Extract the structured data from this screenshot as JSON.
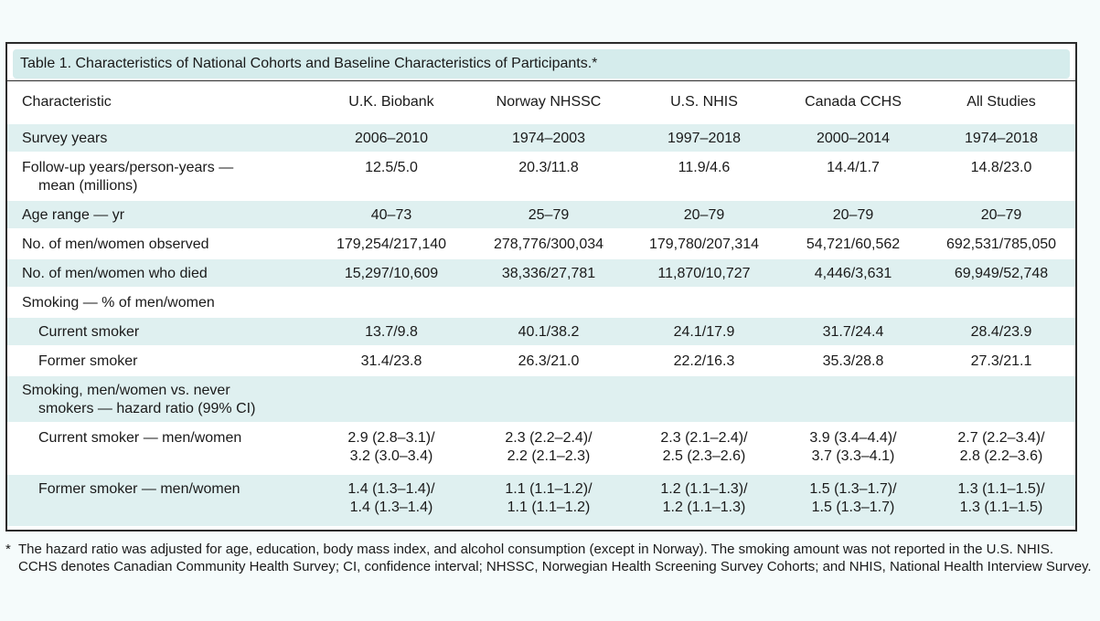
{
  "title": "Table 1. Characteristics of National Cohorts and Baseline Characteristics of Participants.*",
  "header": {
    "characteristic": "Characteristic",
    "columns": [
      "U.K. Biobank",
      "Norway NHSSC",
      "U.S. NHIS",
      "Canada CCHS",
      "All Studies"
    ]
  },
  "rows": [
    {
      "label": [
        "Survey years"
      ],
      "values": [
        [
          "2006–2010"
        ],
        [
          "1974–2003"
        ],
        [
          "1997–2018"
        ],
        [
          "2000–2014"
        ],
        [
          "1974–2018"
        ]
      ]
    },
    {
      "label": [
        "Follow-up years/person-years —",
        "mean (millions)"
      ],
      "values": [
        [
          "12.5/5.0"
        ],
        [
          "20.3/11.8"
        ],
        [
          "11.9/4.6"
        ],
        [
          "14.4/1.7"
        ],
        [
          "14.8/23.0"
        ]
      ]
    },
    {
      "label": [
        "Age range — yr"
      ],
      "values": [
        [
          "40–73"
        ],
        [
          "25–79"
        ],
        [
          "20–79"
        ],
        [
          "20–79"
        ],
        [
          "20–79"
        ]
      ]
    },
    {
      "label": [
        "No. of men/women observed"
      ],
      "values": [
        [
          "179,254/217,140"
        ],
        [
          "278,776/300,034"
        ],
        [
          "179,780/207,314"
        ],
        [
          "54,721/60,562"
        ],
        [
          "692,531/785,050"
        ]
      ]
    },
    {
      "label": [
        "No. of men/women who died"
      ],
      "values": [
        [
          "15,297/10,609"
        ],
        [
          "38,336/27,781"
        ],
        [
          "11,870/10,727"
        ],
        [
          "4,446/3,631"
        ],
        [
          "69,949/52,748"
        ]
      ]
    },
    {
      "label": [
        "Smoking — % of men/women"
      ],
      "values": [
        [
          ""
        ],
        [
          ""
        ],
        [
          ""
        ],
        [
          ""
        ],
        [
          ""
        ]
      ]
    },
    {
      "label": [
        "Current smoker"
      ],
      "values": [
        [
          "13.7/9.8"
        ],
        [
          "40.1/38.2"
        ],
        [
          "24.1/17.9"
        ],
        [
          "31.7/24.4"
        ],
        [
          "28.4/23.9"
        ]
      ]
    },
    {
      "label": [
        "Former smoker"
      ],
      "values": [
        [
          "31.4/23.8"
        ],
        [
          "26.3/21.0"
        ],
        [
          "22.2/16.3"
        ],
        [
          "35.3/28.8"
        ],
        [
          "27.3/21.1"
        ]
      ]
    },
    {
      "label": [
        "Smoking, men/women vs. never",
        "smokers — hazard ratio (99% CI)"
      ],
      "values": [
        [
          ""
        ],
        [
          ""
        ],
        [
          ""
        ],
        [
          ""
        ],
        [
          ""
        ]
      ]
    },
    {
      "label": [
        "Current smoker — men/women"
      ],
      "values": [
        [
          "2.9 (2.8–3.1)/",
          "3.2 (3.0–3.4)"
        ],
        [
          "2.3 (2.2–2.4)/",
          "2.2 (2.1–2.3)"
        ],
        [
          "2.3 (2.1–2.4)/",
          "2.5 (2.3–2.6)"
        ],
        [
          "3.9 (3.4–4.4)/",
          "3.7 (3.3–4.1)"
        ],
        [
          "2.7 (2.2–3.4)/",
          "2.8 (2.2–3.6)"
        ]
      ]
    },
    {
      "label": [
        "Former smoker — men/women"
      ],
      "values": [
        [
          "1.4 (1.3–1.4)/",
          "1.4 (1.3–1.4)"
        ],
        [
          "1.1 (1.1–1.2)/",
          "1.1 (1.1–1.2)"
        ],
        [
          "1.2 (1.1–1.3)/",
          "1.2 (1.1–1.3)"
        ],
        [
          "1.5 (1.3–1.7)/",
          "1.5 (1.3–1.7)"
        ],
        [
          "1.3 (1.1–1.5)/",
          "1.3 (1.1–1.5)"
        ]
      ]
    }
  ],
  "footnote": {
    "mark": "*",
    "text": "The hazard ratio was adjusted for age, education, body mass index, and alcohol consumption (except in Norway). The smoking amount was not reported in the U.S. NHIS. CCHS denotes Canadian Community Health Survey; CI, confidence interval; NHSSC, Norwegian Health Screening Survey Cohorts; and NHIS, National Health Interview Survey."
  },
  "colors": {
    "shade": "#dff0f0",
    "title_bg": "#d5ecec",
    "border": "#2b2b2b"
  }
}
